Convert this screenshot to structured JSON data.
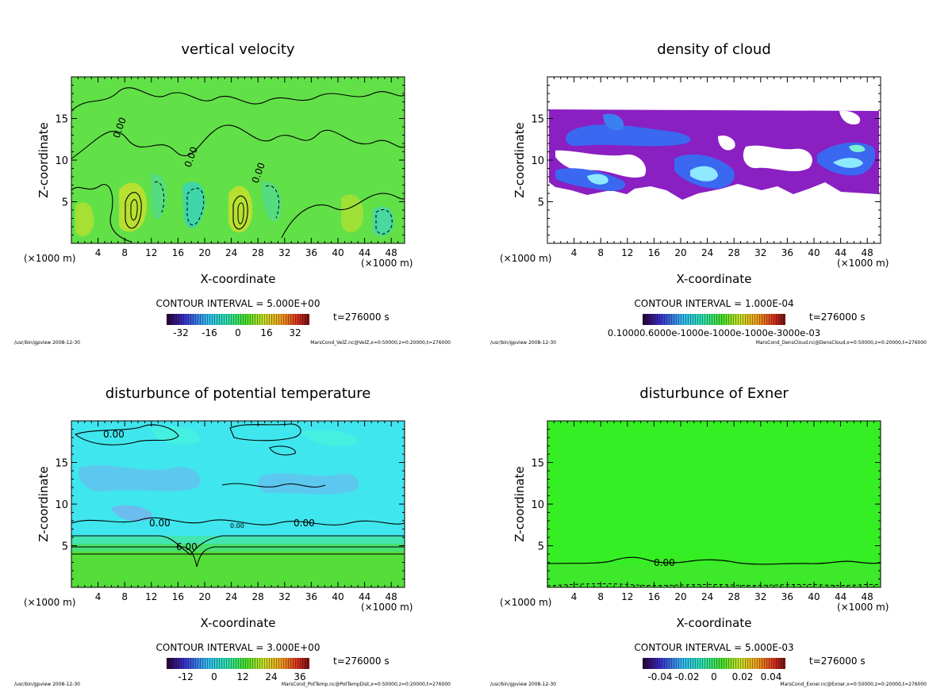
{
  "panels": [
    {
      "title": "vertical velocity",
      "xlabel": "X-coordinate",
      "ylabel": "Z-coordinate",
      "x_unit_left": "(×1000 m)",
      "x_unit_right": "(×1000 m)",
      "contour_interval": "CONTOUR INTERVAL = 5.000E+00",
      "time_label": "t=276000 s",
      "footer_left": "/usr/bin/gpview  2008-12-30",
      "footer_right": "MarsCond_VelZ.nc@VelZ,x=0:50000,z=0:20000,t=276000",
      "contour_labels": [
        "0.00",
        "0.00",
        "0.00"
      ],
      "colorbar_ticks": [
        "-32",
        "-16",
        "0",
        "16",
        "32"
      ]
    },
    {
      "title": "density of cloud",
      "xlabel": "X-coordinate",
      "ylabel": "Z-coordinate",
      "x_unit_left": "(×1000 m)",
      "x_unit_right": "(×1000 m)",
      "contour_interval": "CONTOUR INTERVAL = 1.000E-04",
      "time_label": "t=276000 s",
      "footer_left": "/usr/bin/gpview  2008-12-30",
      "footer_right": "MarsCond_DensCloud.nc@DensCloud,x=0:50000,z=0:20000,t=276000",
      "contour_labels": [],
      "colorbar_ticks": [
        "0.10000.6000e-1000e-1000e-1000e-3000e-03"
      ]
    },
    {
      "title": "disturbunce of potential temperature",
      "xlabel": "X-coordinate",
      "ylabel": "Z-coordinate",
      "x_unit_left": "(×1000 m)",
      "x_unit_right": "(×1000 m)",
      "contour_interval": "CONTOUR INTERVAL = 3.000E+00",
      "time_label": "t=276000 s",
      "footer_left": "/usr/bin/gpview  2008-12-30",
      "footer_right": "MarsCond_PotTemp.nc@PotTempDist,x=0:50000,z=0:20000,t=276000",
      "contour_labels": [
        "0.00",
        "0.00",
        "0.00",
        "0.00",
        "6.00"
      ],
      "colorbar_ticks": [
        "-12",
        "0",
        "12",
        "24",
        "36"
      ]
    },
    {
      "title": "disturbunce of Exner",
      "xlabel": "X-coordinate",
      "ylabel": "Z-coordinate",
      "x_unit_left": "(×1000 m)",
      "x_unit_right": "(×1000 m)",
      "contour_interval": "CONTOUR INTERVAL = 5.000E-03",
      "time_label": "t=276000 s",
      "footer_left": "/usr/bin/gpview  2008-12-30",
      "footer_right": "MarsCond_Exner.nc@Exner,x=0:50000,z=0:20000,t=276000",
      "contour_labels": [
        "0.00"
      ],
      "colorbar_ticks": [
        "-0.04",
        "-0.02",
        "0",
        "0.02",
        "0.04"
      ]
    }
  ],
  "chart_data": [
    {
      "type": "heatmap",
      "title": "vertical velocity",
      "xlabel": "X-coordinate",
      "ylabel": "Z-coordinate",
      "x_ticks": [
        4,
        8,
        12,
        16,
        20,
        24,
        28,
        32,
        36,
        40,
        44,
        48
      ],
      "y_ticks": [
        5,
        10,
        15
      ],
      "xlim": [
        0,
        50
      ],
      "ylim": [
        0,
        20
      ],
      "colorbar_range": [
        -32,
        32
      ],
      "colors": {
        "background": "#5ee04a",
        "positive": "#d6e030",
        "negative": "#3fd6a0",
        "contour": "#000000"
      }
    },
    {
      "type": "heatmap",
      "title": "density of cloud",
      "xlabel": "X-coordinate",
      "ylabel": "Z-coordinate",
      "x_ticks": [
        4,
        8,
        12,
        16,
        20,
        24,
        28,
        32,
        36,
        40,
        44,
        48
      ],
      "y_ticks": [
        5,
        10,
        15
      ],
      "xlim": [
        0,
        50
      ],
      "ylim": [
        0,
        20
      ],
      "colors": {
        "cloud_base": "#8b1fc0",
        "cloud_dense": "#3a6cf0",
        "cloud_core": "#8ee8ff"
      }
    },
    {
      "type": "heatmap",
      "title": "disturbunce of potential temperature",
      "xlabel": "X-coordinate",
      "ylabel": "Z-coordinate",
      "x_ticks": [
        4,
        8,
        12,
        16,
        20,
        24,
        28,
        32,
        36,
        40,
        44,
        48
      ],
      "y_ticks": [
        5,
        10,
        15
      ],
      "xlim": [
        0,
        50
      ],
      "ylim": [
        0,
        20
      ],
      "colorbar_range": [
        -12,
        36
      ],
      "colors": {
        "upper": "#3ee8f0",
        "lower": "#55dd3a",
        "contour": "#000000"
      }
    },
    {
      "type": "heatmap",
      "title": "disturbunce of Exner",
      "xlabel": "X-coordinate",
      "ylabel": "Z-coordinate",
      "x_ticks": [
        4,
        8,
        12,
        16,
        20,
        24,
        28,
        32,
        36,
        40,
        44,
        48
      ],
      "y_ticks": [
        5,
        10,
        15
      ],
      "xlim": [
        0,
        50
      ],
      "ylim": [
        0,
        20
      ],
      "colorbar_range": [
        -0.04,
        0.04
      ],
      "colors": {
        "field": "#33ee22",
        "contour": "#000000"
      }
    }
  ]
}
